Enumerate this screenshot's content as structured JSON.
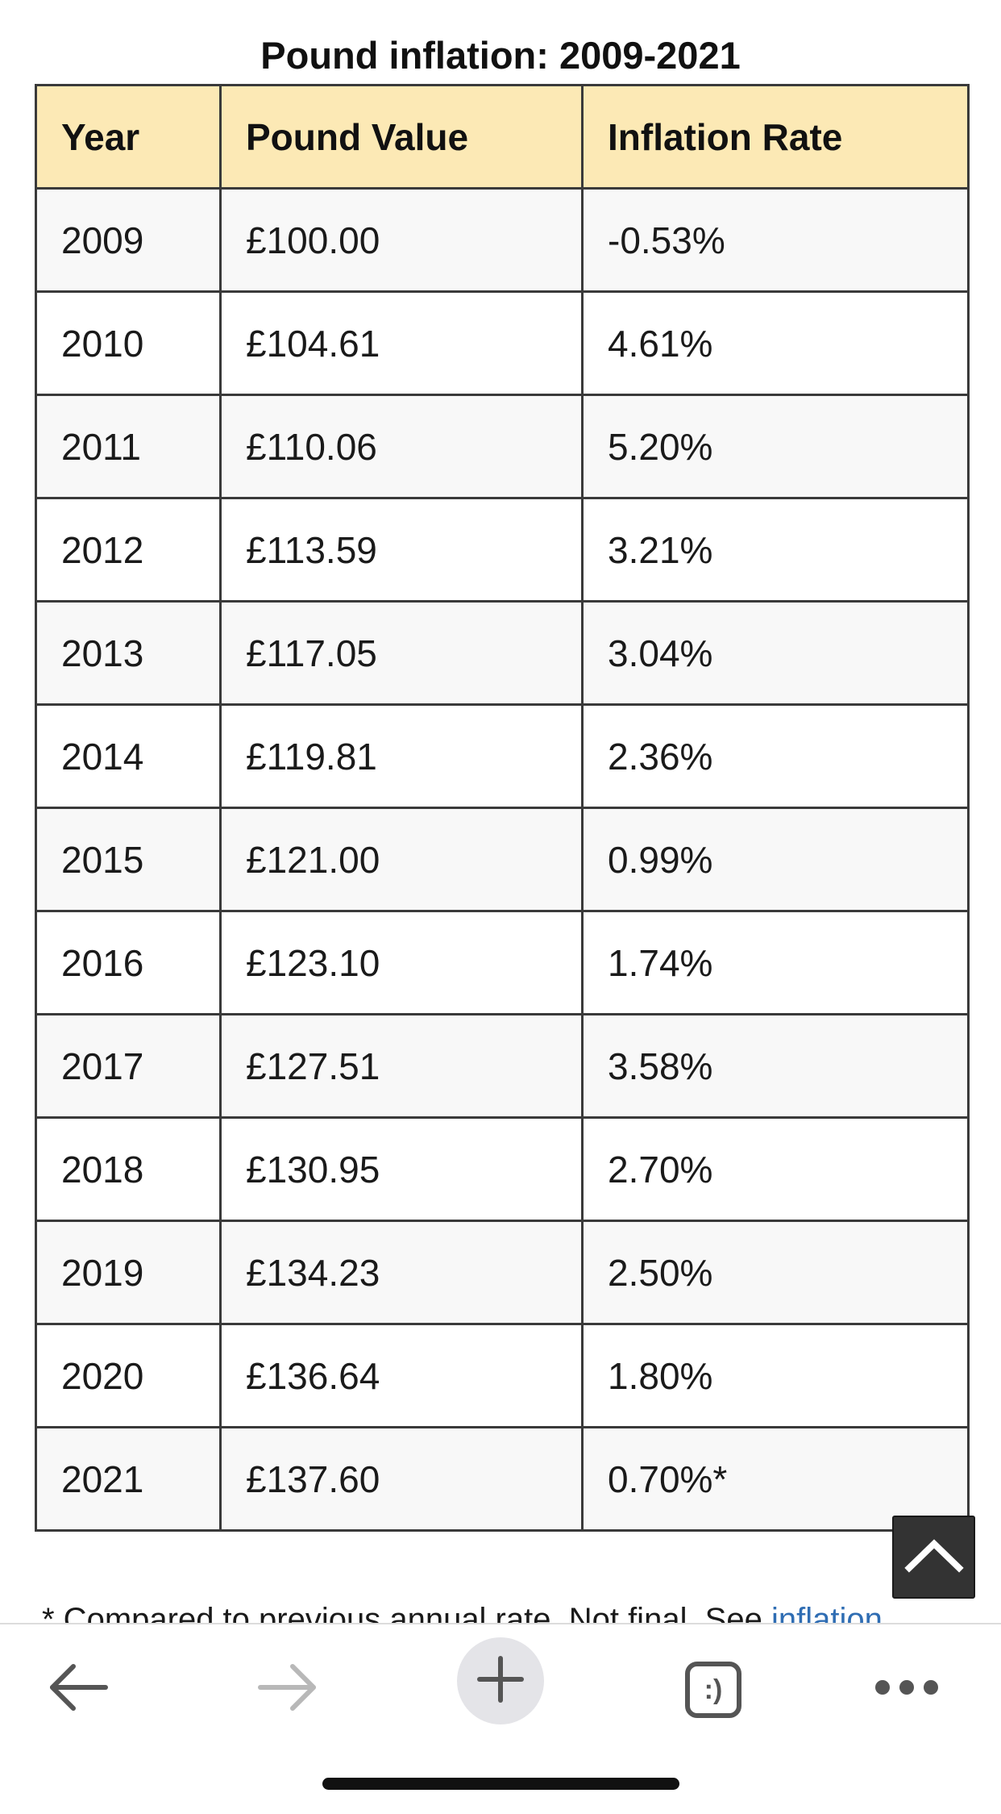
{
  "table": {
    "title": "Pound inflation: 2009-2021",
    "headers": {
      "year": "Year",
      "value": "Pound Value",
      "rate": "Inflation Rate"
    },
    "rows": [
      {
        "year": "2009",
        "value": "£100.00",
        "rate": "-0.53%"
      },
      {
        "year": "2010",
        "value": "£104.61",
        "rate": "4.61%"
      },
      {
        "year": "2011",
        "value": "£110.06",
        "rate": "5.20%"
      },
      {
        "year": "2012",
        "value": "£113.59",
        "rate": "3.21%"
      },
      {
        "year": "2013",
        "value": "£117.05",
        "rate": "3.04%"
      },
      {
        "year": "2014",
        "value": "£119.81",
        "rate": "2.36%"
      },
      {
        "year": "2015",
        "value": "£121.00",
        "rate": "0.99%"
      },
      {
        "year": "2016",
        "value": "£123.10",
        "rate": "1.74%"
      },
      {
        "year": "2017",
        "value": "£127.51",
        "rate": "3.58%"
      },
      {
        "year": "2018",
        "value": "£130.95",
        "rate": "2.70%"
      },
      {
        "year": "2019",
        "value": "£134.23",
        "rate": "2.50%"
      },
      {
        "year": "2020",
        "value": "£136.64",
        "rate": "1.80%"
      },
      {
        "year": "2021",
        "value": "£137.60",
        "rate": "0.70%*"
      }
    ],
    "header_bg": "#fce9b5"
  },
  "footnote": {
    "text": "* Compared to previous annual rate. Not final. See ",
    "link_text": "inflation"
  },
  "scroll_top_icon": "chevron-up-icon",
  "toolbar": {
    "back_icon": "arrow-left-icon",
    "forward_icon": "arrow-right-icon",
    "new_tab_icon": "plus-icon",
    "tabs_icon": "tabs-icon",
    "tabs_glyph": ":)",
    "more_icon": "more-dots-icon"
  },
  "colors": {
    "link": "#2f6db3",
    "border": "#3a3a3a",
    "forward_disabled": "#b8b8b8",
    "toolbar_icon": "#555555"
  }
}
